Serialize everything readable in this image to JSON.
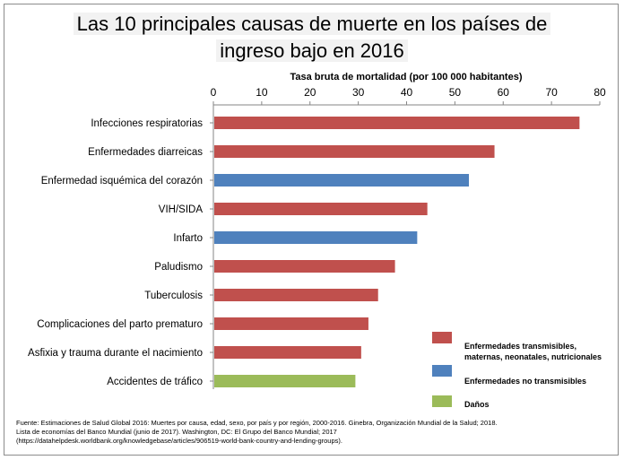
{
  "chart_data": {
    "type": "bar",
    "orientation": "horizontal",
    "title": [
      "Las 10 principales causas de muerte en los países de",
      "ingreso bajo en 2016"
    ],
    "xlabel": "Tasa  bruta de mortalidad  (por 100 000 habitantes)",
    "xlim": [
      0,
      80
    ],
    "xticks": [
      0,
      10,
      20,
      30,
      40,
      50,
      60,
      70,
      80
    ],
    "grid": false,
    "categories": [
      "Infecciones respiratorias",
      "Enfermedades diarreicas",
      "Enfermedad isquémica del corazón",
      "VIH/SIDA",
      "Infarto",
      "Paludismo",
      "Tuberculosis",
      "Complicaciones del parto prematuro",
      "Asfixia y trauma durante el nacimiento",
      "Accidentes de tráfico"
    ],
    "values": [
      75.8,
      58.2,
      52.9,
      44.3,
      42.2,
      37.6,
      34.1,
      32.1,
      30.6,
      29.4
    ],
    "groups": [
      0,
      0,
      1,
      0,
      1,
      0,
      0,
      0,
      0,
      2
    ],
    "legend": {
      "placement": "bottom-right",
      "entries": [
        {
          "lines": [
            "Enfermedades transmisibles,",
            "maternas, neonatales, nutricionales"
          ],
          "color": "#c0504d"
        },
        {
          "lines": [
            "Enfermedades no transmisibles"
          ],
          "color": "#4f81bd"
        },
        {
          "lines": [
            "Daños"
          ],
          "color": "#9bbb59"
        }
      ]
    }
  },
  "source_lines": [
    "Fuente: Estimaciones de Salud Global 2016: Muertes por causa, edad, sexo, por país y por región, 2000-2016. Ginebra, Organización Mundial de la Salud; 2018.",
    "Lista de economías del Banco Mundial (junio de 2017). Washington, DC: El Grupo del Banco Mundial; 2017",
    "(https://datahelpdesk.worldbank.org/knowledgebase/articles/906519-world-bank-country-and-lending-groups)."
  ]
}
